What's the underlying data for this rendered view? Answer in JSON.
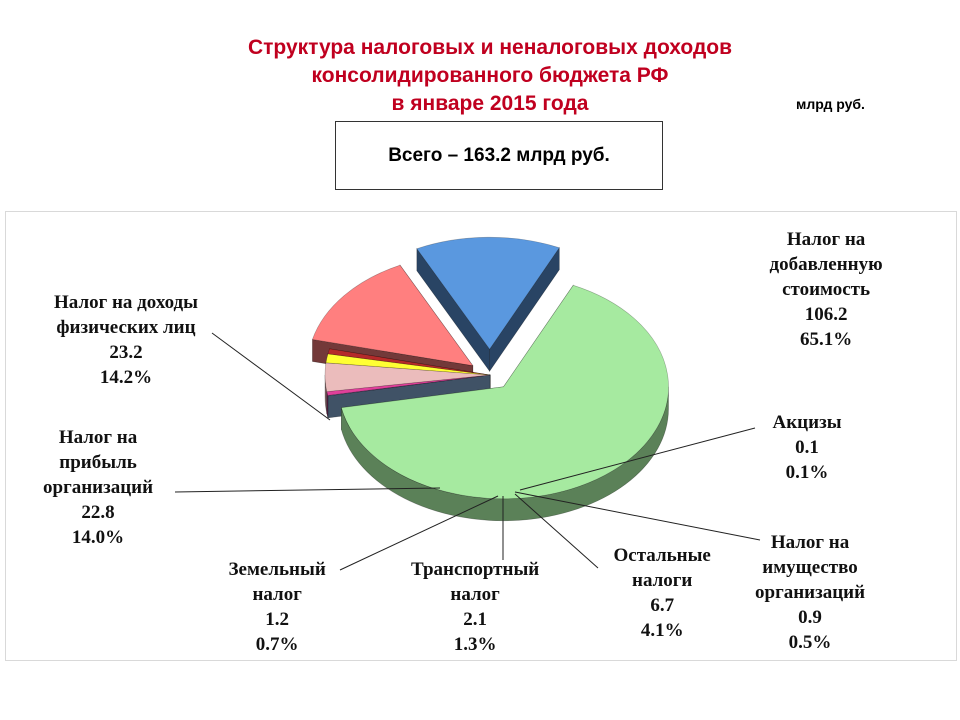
{
  "title_lines": [
    "Структура налоговых  и неналоговых доходов",
    "консолидированного бюджета РФ",
    "в январе 2015 года"
  ],
  "unit": "млрд руб.",
  "total_text": "Всего – 163.2 млрд руб.",
  "chart_data": {
    "type": "pie",
    "title": "Структура налоговых  и неналоговых доходов консолидированного бюджета РФ в январе 2015 года",
    "unit": "млрд руб.",
    "total": 163.2,
    "slices": [
      {
        "label_lines": [
          "Налог на",
          "добавленную",
          "стоимость"
        ],
        "value": 106.2,
        "value_text": "106.2",
        "pct_text": "65.1%",
        "color": "#a6eaa0"
      },
      {
        "label_lines": [
          "Акцизы"
        ],
        "value": 0.1,
        "value_text": "0.1",
        "pct_text": "0.1%",
        "color": "#8fb6e3"
      },
      {
        "label_lines": [
          "Налог на",
          "имущество",
          "организаций"
        ],
        "value": 0.9,
        "value_text": "0.9",
        "pct_text": "0.5%",
        "color": "#e0409a"
      },
      {
        "label_lines": [
          "Остальные",
          "налоги"
        ],
        "value": 6.7,
        "value_text": "6.7",
        "pct_text": "4.1%",
        "color": "#ebbcbc"
      },
      {
        "label_lines": [
          "Транспортный",
          "налог"
        ],
        "value": 2.1,
        "value_text": "2.1",
        "pct_text": "1.3%",
        "color": "#ffff33"
      },
      {
        "label_lines": [
          "Земельный",
          "налог"
        ],
        "value": 1.2,
        "value_text": "1.2",
        "pct_text": "0.7%",
        "color": "#b52a2a"
      },
      {
        "label_lines": [
          "Налог на",
          "прибыль",
          "организаций"
        ],
        "value": 22.8,
        "value_text": "22.8",
        "pct_text": "14.0%",
        "color": "#ff7f7f"
      },
      {
        "label_lines": [
          "Налог на доходы",
          "физических лиц"
        ],
        "value": 23.2,
        "value_text": "23.2",
        "pct_text": "14.2%",
        "color": "#5a98df"
      }
    ]
  }
}
